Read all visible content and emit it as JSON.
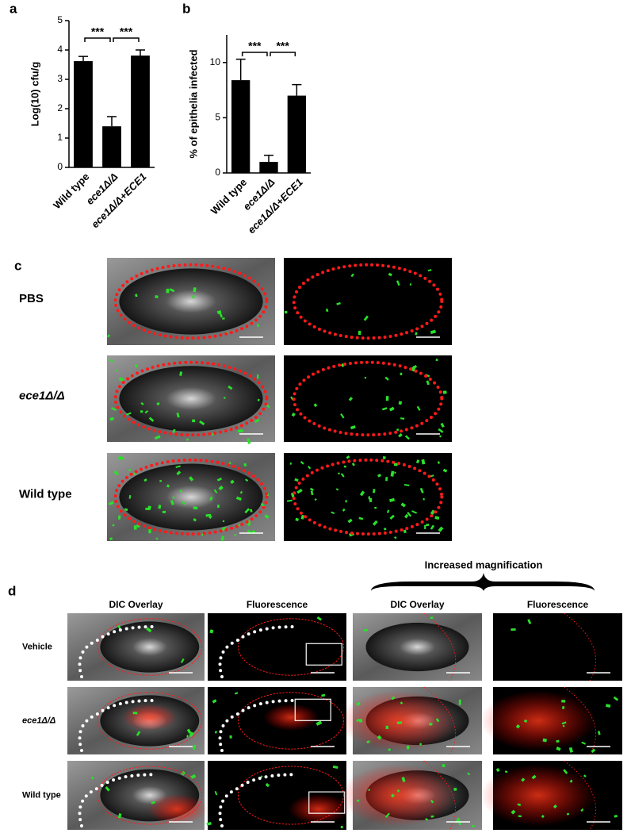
{
  "chart_data": [
    {
      "type": "bar",
      "panel_label": "a",
      "y_label": "Log(10) cfu/g",
      "categories": [
        "Wild type",
        "ece1Δ/Δ",
        "ece1Δ/Δ+ECE1"
      ],
      "values": [
        3.62,
        1.4,
        3.81
      ],
      "errors": [
        0.16,
        0.33,
        0.19
      ],
      "color": "#000000",
      "ylim": [
        0,
        5
      ],
      "yticks": [
        0,
        1,
        2,
        3,
        4,
        5
      ],
      "annotations": [
        "***",
        "***"
      ]
    },
    {
      "type": "bar",
      "panel_label": "b",
      "y_label": "% of epithelia infected",
      "categories": [
        "Wild type",
        "ece1Δ/Δ",
        "ece1Δ/Δ+ECE1"
      ],
      "values": [
        8.4,
        1.0,
        7.0
      ],
      "errors": [
        1.9,
        0.6,
        1.0
      ],
      "color": "#000000",
      "ylim": [
        0,
        12.5
      ],
      "yticks": [
        0,
        5,
        10
      ],
      "annotations": [
        "***",
        "***"
      ]
    }
  ],
  "panel_c": {
    "label": "c",
    "rows": [
      "PBS",
      "ece1Δ/Δ",
      "Wild type"
    ]
  },
  "panel_d": {
    "label": "d",
    "magnification_note": "Increased magnification",
    "columns": [
      "DIC Overlay",
      "Fluorescence",
      "DIC Overlay",
      "Fluorescence"
    ],
    "rows": [
      "Vehicle",
      "ece1Δ/Δ",
      "Wild type"
    ]
  }
}
